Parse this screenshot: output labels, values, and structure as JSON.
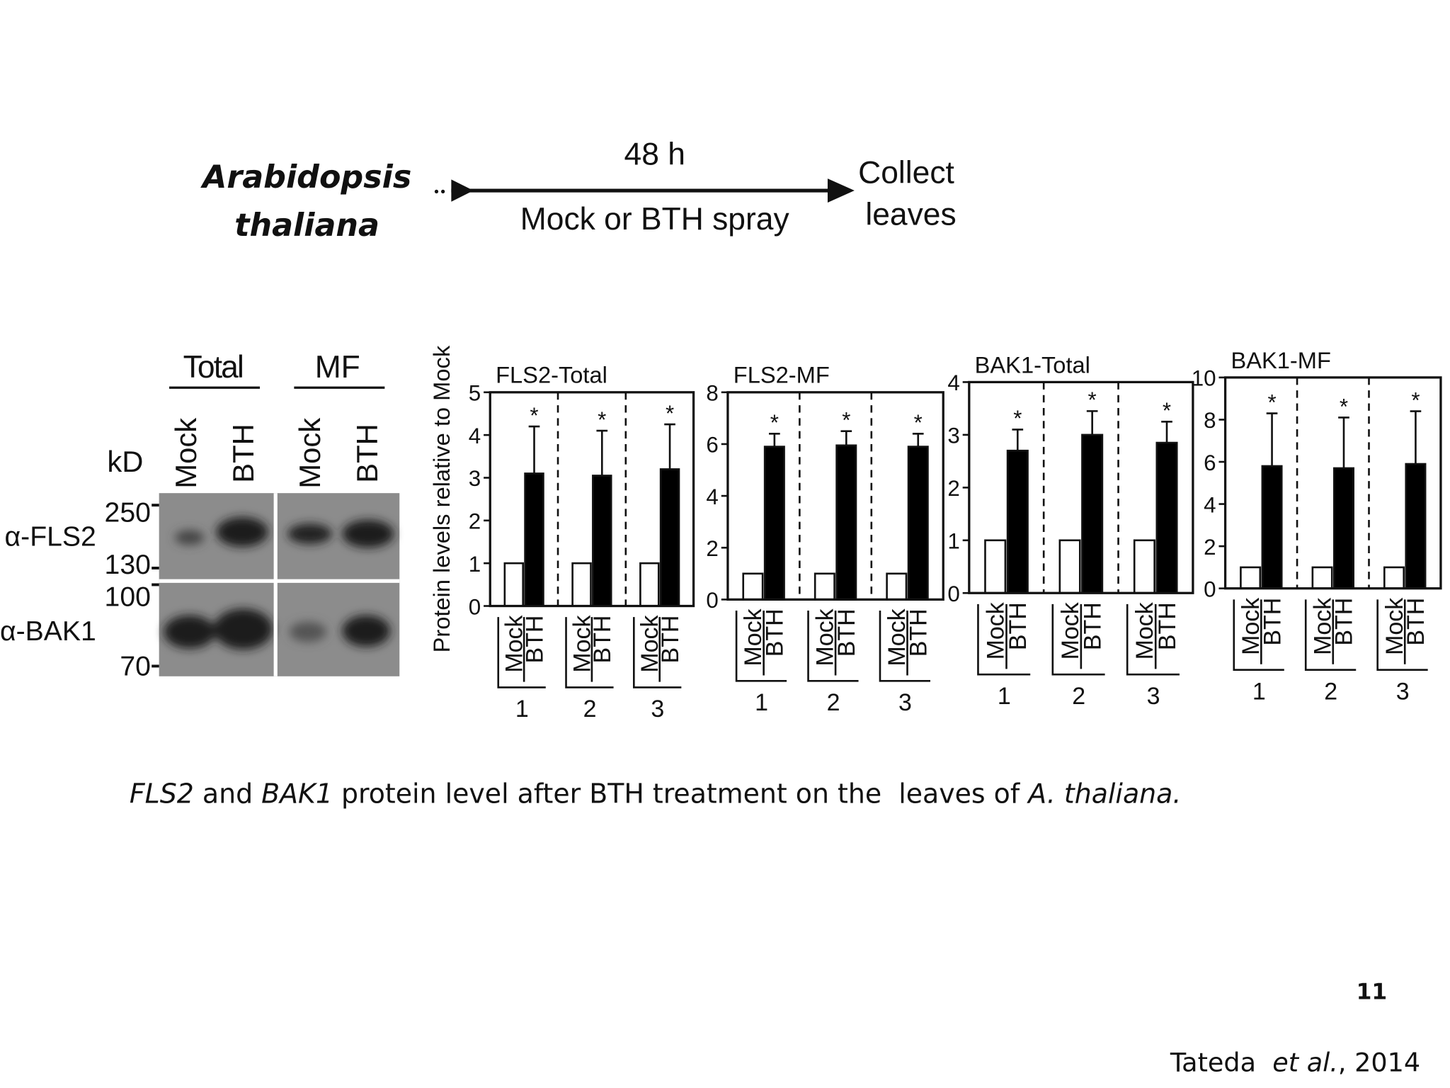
{
  "header": {
    "organism": [
      "Arabidopsis",
      "thaliana"
    ],
    "duration": "48 h",
    "treatment": "Mock or BTH spray",
    "endpoint": [
      "Collect",
      "leaves"
    ]
  },
  "blot": {
    "groups": [
      "Total",
      "MF"
    ],
    "lanes": [
      "Mock",
      "BTH",
      "Mock",
      "BTH"
    ],
    "unit": "kD",
    "rows": [
      "α-FLS2",
      "α-BAK1"
    ],
    "markers": [
      "250",
      "130",
      "100",
      "70"
    ]
  },
  "chart_data": [
    {
      "type": "bar",
      "title": "FLS2-Total",
      "y_label": "Protein levels relative to Mock",
      "categories": [
        "1",
        "2",
        "3"
      ],
      "series": [
        {
          "name": "Mock",
          "color": "#ffffff",
          "values": [
            1,
            1,
            1
          ]
        },
        {
          "name": "BTH",
          "color": "#000000",
          "values": [
            3.1,
            3.05,
            3.2
          ],
          "errors": [
            1.1,
            1.05,
            1.05
          ]
        }
      ],
      "significance": [
        "*",
        "*",
        "*"
      ],
      "ylim": [
        0,
        5
      ],
      "yticks": [
        0,
        1,
        2,
        3,
        4,
        5
      ]
    },
    {
      "type": "bar",
      "title": "FLS2-MF",
      "categories": [
        "1",
        "2",
        "3"
      ],
      "series": [
        {
          "name": "Mock",
          "color": "#ffffff",
          "values": [
            1,
            1,
            1
          ]
        },
        {
          "name": "BTH",
          "color": "#000000",
          "values": [
            5.9,
            5.95,
            5.9
          ],
          "errors": [
            0.5,
            0.55,
            0.5
          ]
        }
      ],
      "significance": [
        "*",
        "*",
        "*"
      ],
      "ylim": [
        0,
        8
      ],
      "yticks": [
        0,
        2,
        4,
        6,
        8
      ]
    },
    {
      "type": "bar",
      "title": "BAK1-Total",
      "categories": [
        "1",
        "2",
        "3"
      ],
      "series": [
        {
          "name": "Mock",
          "color": "#ffffff",
          "values": [
            1,
            1,
            1
          ]
        },
        {
          "name": "BTH",
          "color": "#000000",
          "values": [
            2.7,
            3.0,
            2.85
          ],
          "errors": [
            0.4,
            0.45,
            0.4
          ]
        }
      ],
      "significance": [
        "*",
        "*",
        "*"
      ],
      "ylim": [
        0,
        4
      ],
      "yticks": [
        0,
        1,
        2,
        3,
        4
      ]
    },
    {
      "type": "bar",
      "title": "BAK1-MF",
      "categories": [
        "1",
        "2",
        "3"
      ],
      "series": [
        {
          "name": "Mock",
          "color": "#ffffff",
          "values": [
            1,
            1,
            1
          ]
        },
        {
          "name": "BTH",
          "color": "#000000",
          "values": [
            5.8,
            5.7,
            5.9
          ],
          "errors": [
            2.5,
            2.4,
            2.5
          ]
        }
      ],
      "significance": [
        "*",
        "*",
        "*"
      ],
      "ylim": [
        0,
        10
      ],
      "yticks": [
        0,
        2,
        4,
        6,
        8,
        10
      ]
    }
  ],
  "caption": [
    {
      "text": "FLS2",
      "italic": true
    },
    {
      "text": " and ",
      "italic": false
    },
    {
      "text": "BAK1",
      "italic": true
    },
    {
      "text": " protein level after BTH treatment on the  leaves of ",
      "italic": false
    },
    {
      "text": "A. thaliana.",
      "italic": true
    }
  ],
  "page_number": "11",
  "citation": [
    {
      "text": "Tateda  ",
      "italic": false
    },
    {
      "text": "et al.",
      "italic": true
    },
    {
      "text": ", 2014",
      "italic": false
    }
  ]
}
